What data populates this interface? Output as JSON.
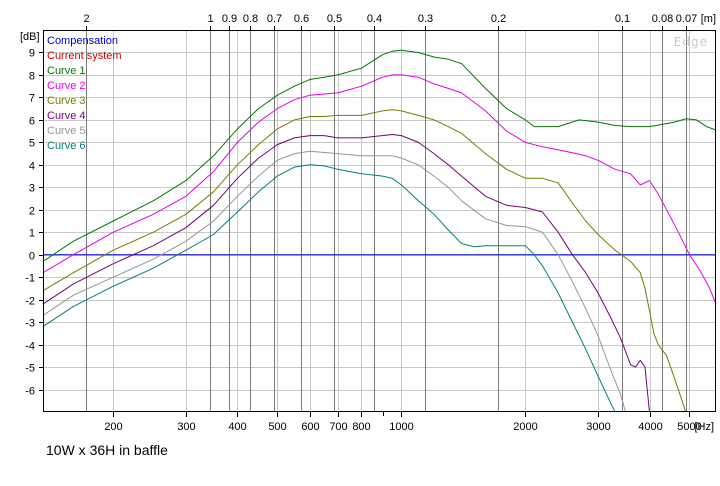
{
  "chart_data": {
    "type": "line",
    "caption": "10W x 36H in baffle",
    "watermark": "Edge",
    "xscale": "log",
    "xlim": [
      135,
      5800
    ],
    "ylim": [
      -7,
      10
    ],
    "x_unit": "[Hz]",
    "y_unit": "[dB]",
    "top_unit": "[m]",
    "x_ticks": [
      {
        "value": 200,
        "label": "200"
      },
      {
        "value": 300,
        "label": "300"
      },
      {
        "value": 400,
        "label": "400"
      },
      {
        "value": 500,
        "label": "500"
      },
      {
        "value": 600,
        "label": "600"
      },
      {
        "value": 700,
        "label": "700"
      },
      {
        "value": 800,
        "label": "800"
      },
      {
        "value": 1000,
        "label": "1000"
      },
      {
        "value": 2000,
        "label": "2000"
      },
      {
        "value": 3000,
        "label": "3000"
      },
      {
        "value": 4000,
        "label": "4000"
      },
      {
        "value": 5000,
        "label": "5000"
      }
    ],
    "x_minor_ticks": [
      900
    ],
    "top_ticks": [
      {
        "value": 171.5,
        "label": "2"
      },
      {
        "value": 343,
        "label": "1"
      },
      {
        "value": 381,
        "label": "0.9"
      },
      {
        "value": 429,
        "label": "0.8"
      },
      {
        "value": 490,
        "label": "0.7"
      },
      {
        "value": 572,
        "label": "0.6"
      },
      {
        "value": 686,
        "label": "0.5"
      },
      {
        "value": 857,
        "label": "0.4"
      },
      {
        "value": 1143,
        "label": "0.3"
      },
      {
        "value": 1715,
        "label": "0.2"
      },
      {
        "value": 3430,
        "label": "0.1"
      },
      {
        "value": 4287,
        "label": "0.08"
      },
      {
        "value": 4900,
        "label": "0.07"
      }
    ],
    "y_ticks": [
      {
        "value": 9,
        "label": "9"
      },
      {
        "value": 8,
        "label": "8"
      },
      {
        "value": 7,
        "label": "7"
      },
      {
        "value": 6,
        "label": "6"
      },
      {
        "value": 5,
        "label": "5"
      },
      {
        "value": 4,
        "label": "4"
      },
      {
        "value": 3,
        "label": "3"
      },
      {
        "value": 2,
        "label": "2"
      },
      {
        "value": 1,
        "label": "1"
      },
      {
        "value": 0,
        "label": "0"
      },
      {
        "value": -1,
        "label": "-1"
      },
      {
        "value": -2,
        "label": "-2"
      },
      {
        "value": -3,
        "label": "-3"
      },
      {
        "value": -4,
        "label": "-4"
      },
      {
        "value": -5,
        "label": "-5"
      },
      {
        "value": -6,
        "label": "-6"
      }
    ],
    "series": [
      {
        "name": "Compensation",
        "color": "#0000c8",
        "x": [
          135,
          5800
        ],
        "y": [
          0,
          0
        ]
      },
      {
        "name": "Current system",
        "color": "#c80000",
        "x": [],
        "y": []
      },
      {
        "name": "Curve 1",
        "color": "#007800",
        "x": [
          135,
          160,
          200,
          250,
          300,
          350,
          400,
          450,
          500,
          550,
          600,
          650,
          700,
          800,
          900,
          950,
          1000,
          1100,
          1200,
          1300,
          1400,
          1600,
          1800,
          2000,
          2100,
          2200,
          2400,
          2700,
          3000,
          3300,
          3600,
          4000,
          4300,
          4600,
          4900,
          5200,
          5500,
          5800
        ],
        "y": [
          -0.3,
          0.6,
          1.5,
          2.4,
          3.3,
          4.4,
          5.6,
          6.5,
          7.1,
          7.5,
          7.8,
          7.9,
          8.0,
          8.3,
          8.9,
          9.05,
          9.1,
          9.0,
          8.8,
          8.7,
          8.5,
          7.4,
          6.5,
          6.0,
          5.7,
          5.7,
          5.7,
          6.0,
          5.9,
          5.75,
          5.7,
          5.7,
          5.8,
          5.9,
          6.05,
          6.0,
          5.7,
          5.55
        ]
      },
      {
        "name": "Curve 2",
        "color": "#e600e6",
        "x": [
          135,
          160,
          200,
          250,
          300,
          350,
          400,
          450,
          500,
          550,
          600,
          650,
          700,
          800,
          900,
          950,
          1000,
          1100,
          1200,
          1300,
          1400,
          1600,
          1800,
          2000,
          2200,
          2500,
          2800,
          3000,
          3300,
          3600,
          3800,
          4000,
          4200,
          4400,
          4700,
          5000,
          5300,
          5600,
          5800
        ],
        "y": [
          -0.8,
          0.0,
          1.0,
          1.8,
          2.6,
          3.7,
          5.0,
          5.9,
          6.5,
          6.9,
          7.1,
          7.15,
          7.2,
          7.5,
          7.9,
          8.0,
          8.0,
          7.9,
          7.6,
          7.4,
          7.2,
          6.4,
          5.5,
          5.0,
          4.8,
          4.6,
          4.4,
          4.2,
          3.8,
          3.6,
          3.1,
          3.3,
          2.7,
          2.0,
          1.0,
          0.0,
          -0.7,
          -1.5,
          -2.2
        ]
      },
      {
        "name": "Curve 3",
        "color": "#7a7a00",
        "x": [
          135,
          160,
          200,
          250,
          300,
          350,
          400,
          450,
          500,
          550,
          600,
          650,
          700,
          800,
          900,
          950,
          1000,
          1100,
          1200,
          1300,
          1400,
          1600,
          1800,
          2000,
          2200,
          2400,
          2600,
          2800,
          3000,
          3300,
          3600,
          3800,
          3900,
          4000,
          4100,
          4200,
          4400,
          4600,
          4800,
          4900
        ],
        "y": [
          -1.6,
          -0.8,
          0.2,
          1.0,
          1.8,
          2.8,
          4.0,
          4.9,
          5.6,
          6.0,
          6.15,
          6.15,
          6.2,
          6.2,
          6.4,
          6.45,
          6.4,
          6.2,
          6.0,
          5.7,
          5.4,
          4.5,
          3.8,
          3.4,
          3.4,
          3.2,
          2.3,
          1.5,
          0.9,
          0.2,
          -0.3,
          -0.8,
          -1.5,
          -2.5,
          -3.5,
          -4.0,
          -4.5,
          -5.5,
          -6.5,
          -7.0
        ]
      },
      {
        "name": "Curve 4",
        "color": "#780078",
        "x": [
          135,
          160,
          200,
          250,
          300,
          350,
          400,
          450,
          500,
          550,
          600,
          650,
          700,
          800,
          900,
          950,
          1000,
          1100,
          1200,
          1300,
          1400,
          1600,
          1800,
          2000,
          2200,
          2400,
          2600,
          2800,
          3000,
          3200,
          3400,
          3600,
          3700,
          3800,
          3900,
          3950,
          4000
        ],
        "y": [
          -2.2,
          -1.3,
          -0.4,
          0.4,
          1.2,
          2.2,
          3.4,
          4.3,
          4.9,
          5.2,
          5.3,
          5.3,
          5.2,
          5.2,
          5.3,
          5.35,
          5.3,
          5.0,
          4.5,
          4.0,
          3.5,
          2.6,
          2.2,
          2.1,
          1.9,
          1.0,
          0.0,
          -0.8,
          -1.7,
          -2.7,
          -3.7,
          -4.9,
          -5.0,
          -4.7,
          -5.0,
          -6.0,
          -7.0
        ]
      },
      {
        "name": "Curve 5",
        "color": "#969696",
        "x": [
          135,
          160,
          200,
          250,
          300,
          350,
          400,
          450,
          500,
          550,
          600,
          650,
          700,
          800,
          900,
          950,
          1000,
          1100,
          1200,
          1300,
          1400,
          1600,
          1800,
          2000,
          2200,
          2400,
          2600,
          2800,
          3000,
          3200,
          3400,
          3500
        ],
        "y": [
          -2.7,
          -1.8,
          -1.0,
          -0.2,
          0.6,
          1.5,
          2.6,
          3.5,
          4.2,
          4.5,
          4.6,
          4.55,
          4.5,
          4.4,
          4.4,
          4.4,
          4.3,
          4.0,
          3.5,
          3.0,
          2.4,
          1.6,
          1.3,
          1.25,
          1.0,
          0.0,
          -1.2,
          -2.4,
          -3.6,
          -5.0,
          -6.2,
          -7.0
        ]
      },
      {
        "name": "Curve 6",
        "color": "#008080",
        "x": [
          135,
          160,
          200,
          250,
          300,
          350,
          400,
          450,
          500,
          550,
          600,
          650,
          700,
          800,
          900,
          950,
          1000,
          1100,
          1200,
          1300,
          1400,
          1500,
          1600,
          1800,
          2000,
          2100,
          2200,
          2400,
          2600,
          2800,
          3000,
          3200,
          3300
        ],
        "y": [
          -3.2,
          -2.3,
          -1.4,
          -0.6,
          0.2,
          0.9,
          1.9,
          2.8,
          3.5,
          3.9,
          4.0,
          3.95,
          3.8,
          3.6,
          3.5,
          3.4,
          3.1,
          2.4,
          1.8,
          1.1,
          0.5,
          0.35,
          0.4,
          0.4,
          0.4,
          0.0,
          -0.5,
          -1.7,
          -3.0,
          -4.2,
          -5.4,
          -6.5,
          -7.0
        ]
      }
    ]
  }
}
